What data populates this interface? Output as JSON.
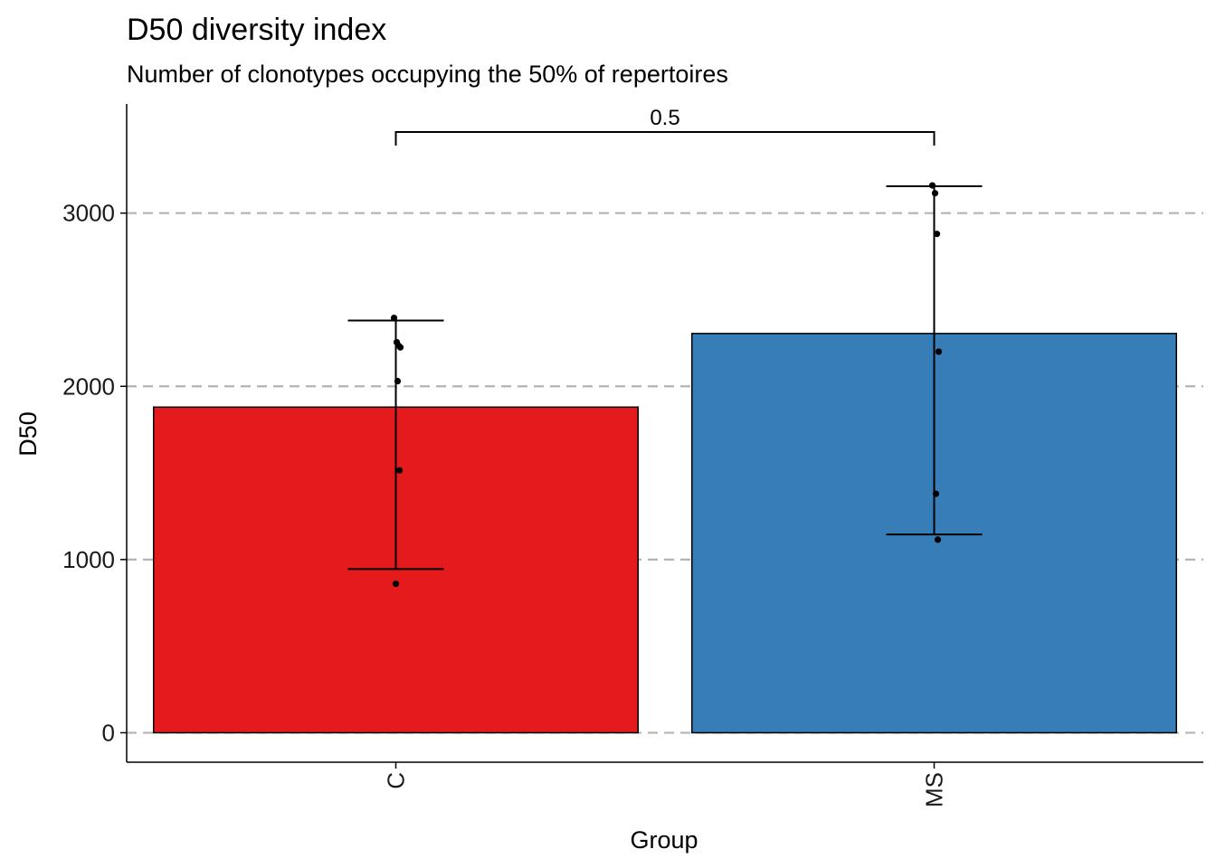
{
  "chart_data": {
    "type": "bar",
    "title": "D50 diversity index",
    "subtitle": "Number of clonotypes occupying the 50% of repertoires",
    "xlabel": "Group",
    "ylabel": "D50",
    "categories": [
      "C",
      "MS"
    ],
    "values": [
      1880,
      2305
    ],
    "colors": [
      "#E41A1C",
      "#377EB8"
    ],
    "error_bars": [
      {
        "low": 945,
        "high": 2380
      },
      {
        "low": 1145,
        "high": 3155
      }
    ],
    "points": [
      [
        2395,
        2255,
        2235,
        2225,
        2030,
        1515,
        860
      ],
      [
        3160,
        3115,
        2880,
        2200,
        1380,
        1115
      ]
    ],
    "significance": {
      "from": "C",
      "to": "MS",
      "label": "0.5"
    },
    "yticks": [
      0,
      1000,
      2000,
      3000
    ],
    "ylim": [
      -170,
      3630
    ],
    "grid": "horizontal dashed",
    "legend": "none"
  }
}
